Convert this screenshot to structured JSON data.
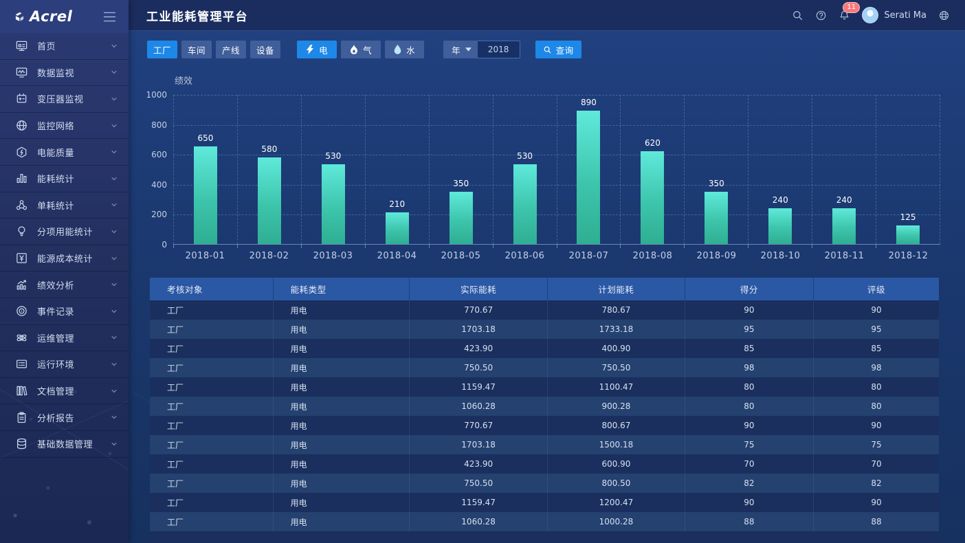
{
  "brand": {
    "logo_text": "Acrel"
  },
  "header": {
    "title": "工业能耗管理平台",
    "notification_count": "11",
    "user_name": "Serati Ma"
  },
  "sidebar": {
    "items": [
      {
        "label": "首页",
        "icon": "home-icon"
      },
      {
        "label": "数据监视",
        "icon": "data-monitor-icon"
      },
      {
        "label": "变压器监视",
        "icon": "transformer-icon"
      },
      {
        "label": "监控网络",
        "icon": "network-icon"
      },
      {
        "label": "电能质量",
        "icon": "power-quality-icon"
      },
      {
        "label": "能耗统计",
        "icon": "energy-stats-icon"
      },
      {
        "label": "单耗统计",
        "icon": "unit-stats-icon"
      },
      {
        "label": "分项用能统计",
        "icon": "subitem-stats-icon"
      },
      {
        "label": "能源成本统计",
        "icon": "cost-stats-icon"
      },
      {
        "label": "绩效分析",
        "icon": "performance-icon"
      },
      {
        "label": "事件记录",
        "icon": "events-icon"
      },
      {
        "label": "运维管理",
        "icon": "om-icon"
      },
      {
        "label": "运行环境",
        "icon": "env-icon"
      },
      {
        "label": "文档管理",
        "icon": "docs-icon"
      },
      {
        "label": "分析报告",
        "icon": "report-icon"
      },
      {
        "label": "基础数据管理",
        "icon": "basedata-icon"
      }
    ]
  },
  "filters": {
    "scope_buttons": [
      {
        "label": "工厂",
        "active": true
      },
      {
        "label": "车间",
        "active": false
      },
      {
        "label": "产线",
        "active": false
      },
      {
        "label": "设备",
        "active": false
      }
    ],
    "energy_buttons": [
      {
        "label": "电",
        "icon": "bolt-icon",
        "active": true
      },
      {
        "label": "气",
        "icon": "flame-icon",
        "active": false
      },
      {
        "label": "水",
        "icon": "drop-icon",
        "active": false
      }
    ],
    "period_label": "年",
    "year_value": "2018",
    "search_label": "查询"
  },
  "chart_data": {
    "type": "bar",
    "title": "绩效",
    "categories": [
      "2018-01",
      "2018-02",
      "2018-03",
      "2018-04",
      "2018-05",
      "2018-06",
      "2018-07",
      "2018-08",
      "2018-09",
      "2018-10",
      "2018-11",
      "2018-12"
    ],
    "values": [
      650,
      580,
      530,
      210,
      350,
      530,
      890,
      620,
      350,
      240,
      240,
      125
    ],
    "xlabel": "",
    "ylabel": "",
    "ylim": [
      0,
      1000
    ],
    "yticks": [
      0,
      200,
      400,
      600,
      800,
      1000
    ],
    "grid": true,
    "legend": false,
    "bar_color_top": "#5fe9da",
    "bar_color_bottom": "#2fae92"
  },
  "table": {
    "columns": [
      "考核对象",
      "能耗类型",
      "实际能耗",
      "计划能耗",
      "得分",
      "评级"
    ],
    "rows": [
      [
        "工厂",
        "用电",
        "770.67",
        "780.67",
        "90",
        "90"
      ],
      [
        "工厂",
        "用电",
        "1703.18",
        "1733.18",
        "95",
        "95"
      ],
      [
        "工厂",
        "用电",
        "423.90",
        "400.90",
        "85",
        "85"
      ],
      [
        "工厂",
        "用电",
        "750.50",
        "750.50",
        "98",
        "98"
      ],
      [
        "工厂",
        "用电",
        "1159.47",
        "1100.47",
        "80",
        "80"
      ],
      [
        "工厂",
        "用电",
        "1060.28",
        "900.28",
        "80",
        "80"
      ],
      [
        "工厂",
        "用电",
        "770.67",
        "800.67",
        "90",
        "90"
      ],
      [
        "工厂",
        "用电",
        "1703.18",
        "1500.18",
        "75",
        "75"
      ],
      [
        "工厂",
        "用电",
        "423.90",
        "600.90",
        "70",
        "70"
      ],
      [
        "工厂",
        "用电",
        "750.50",
        "800.50",
        "82",
        "82"
      ],
      [
        "工厂",
        "用电",
        "1159.47",
        "1200.47",
        "90",
        "90"
      ],
      [
        "工厂",
        "用电",
        "1060.28",
        "1000.28",
        "88",
        "88"
      ]
    ]
  }
}
